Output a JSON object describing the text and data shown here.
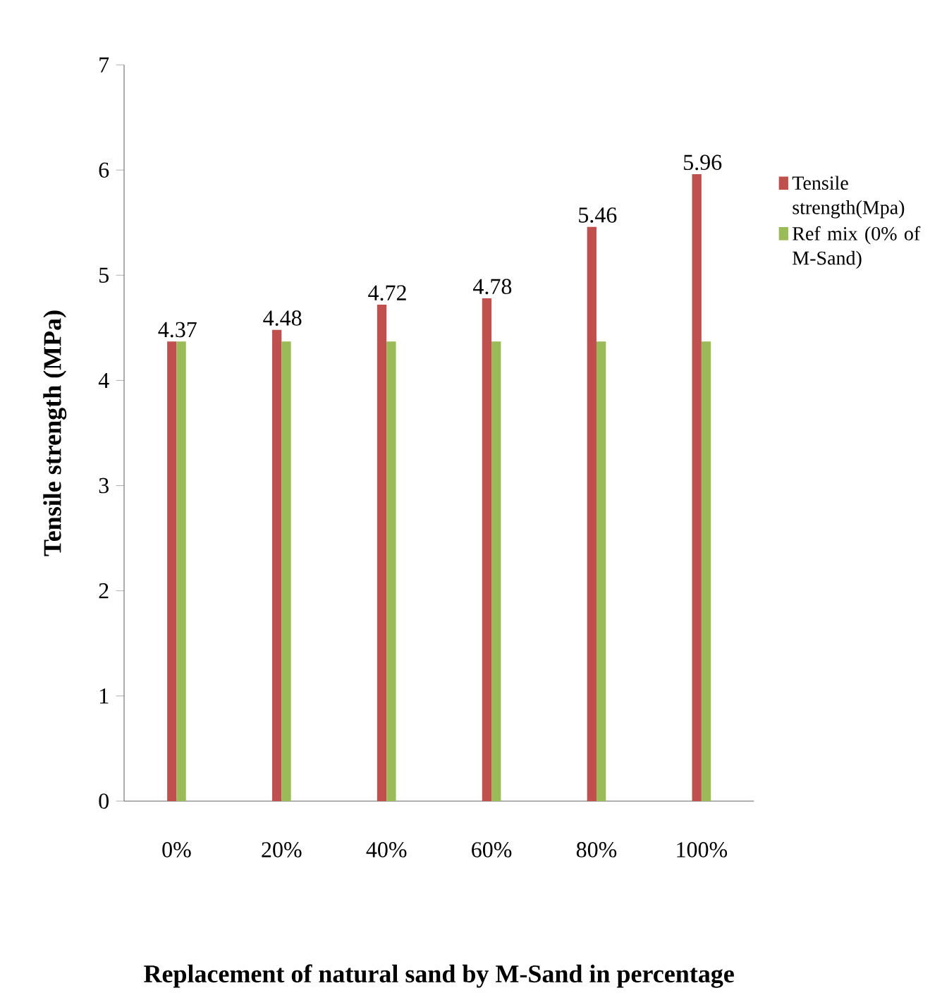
{
  "chart_data": {
    "type": "bar",
    "xlabel": "Replacement of natural sand by M-Sand in percentage",
    "ylabel": "Tensile strength (MPa)",
    "categories": [
      "0%",
      "20%",
      "40%",
      "60%",
      "80%",
      "100%"
    ],
    "series": [
      {
        "name": "Tensile strength(Mpa)",
        "color": "#c0504d",
        "values": [
          4.37,
          4.48,
          4.72,
          4.78,
          5.46,
          5.96
        ],
        "value_labels": [
          "4.37",
          "4.48",
          "4.72",
          "4.78",
          "5.46",
          "5.96"
        ]
      },
      {
        "name": "Ref mix (0% of M-Sand)",
        "color": "#9bbb59",
        "values": [
          4.37,
          4.37,
          4.37,
          4.37,
          4.37,
          4.37
        ]
      }
    ],
    "ylim": [
      0,
      7
    ],
    "yticks": [
      0,
      1,
      2,
      3,
      4,
      5,
      6,
      7
    ],
    "legend": "right",
    "grid": false
  }
}
